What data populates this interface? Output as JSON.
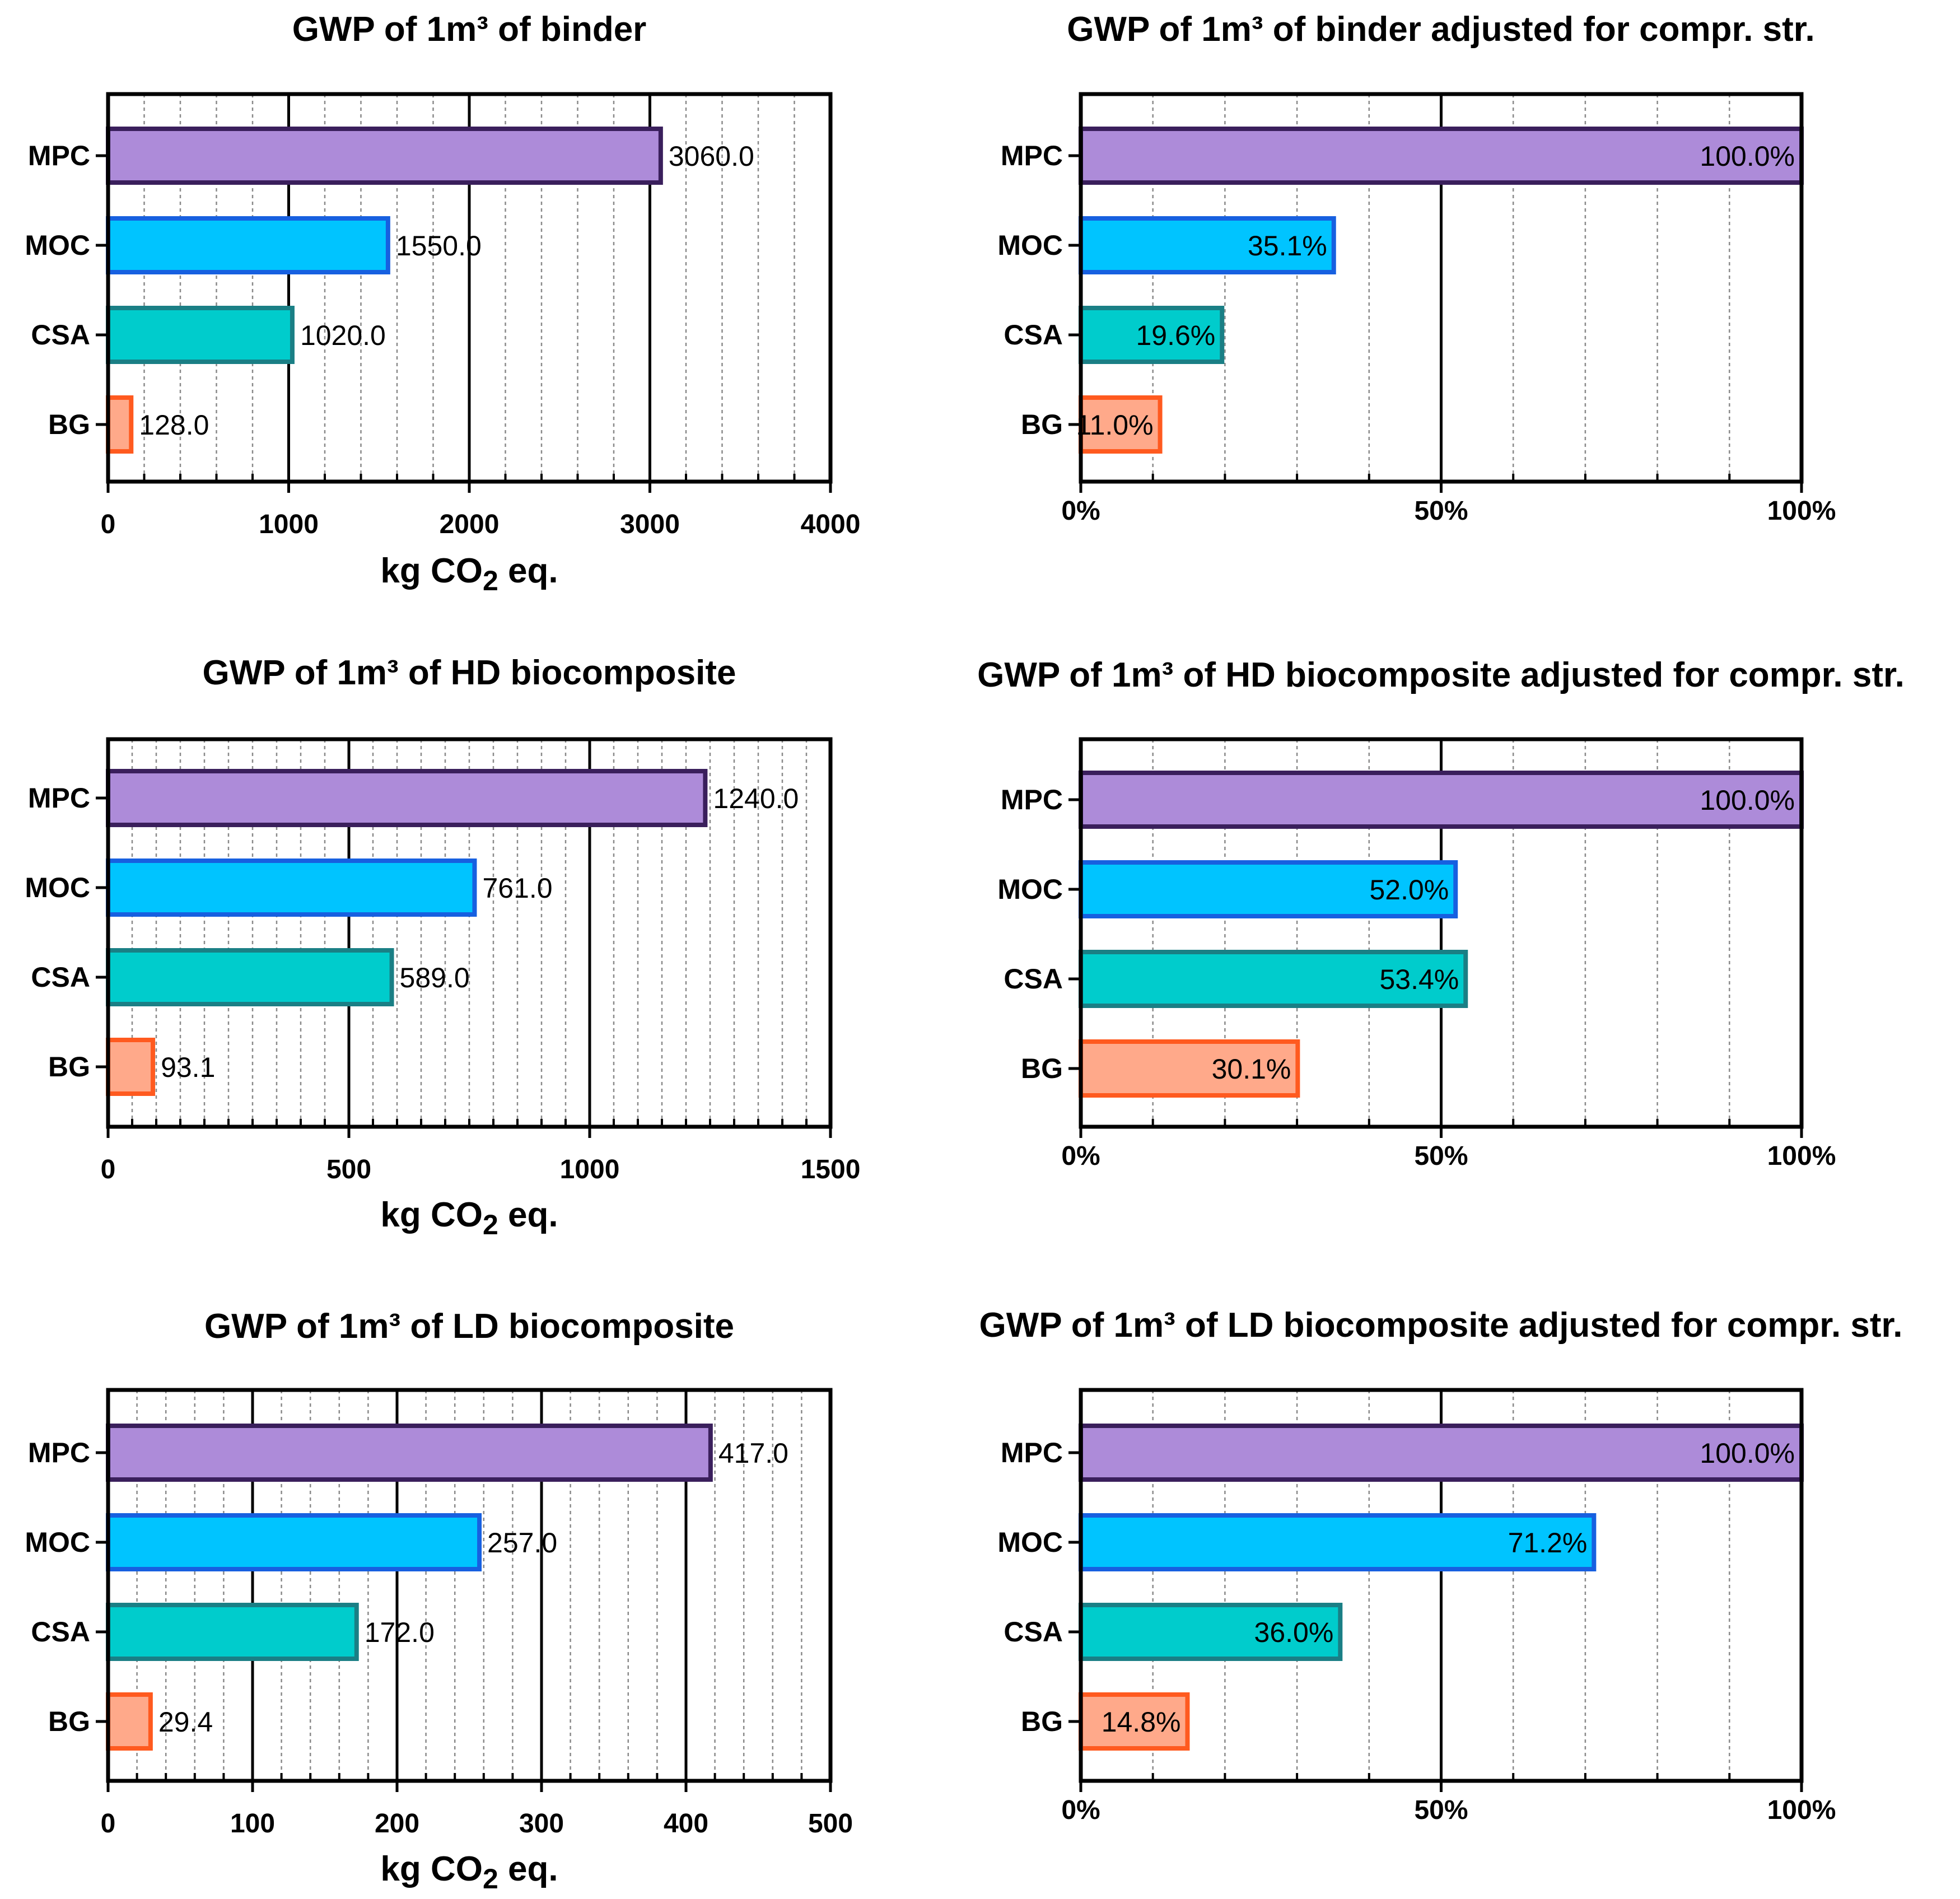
{
  "chart_data": [
    {
      "type": "bar",
      "orientation": "horizontal",
      "title": "GWP of 1m³ of binder",
      "categories": [
        "MPC",
        "MOC",
        "CSA",
        "BG"
      ],
      "values": [
        3060.0,
        1550.0,
        1020.0,
        128.0
      ],
      "value_labels": [
        "3060.0",
        "1550.0",
        "1020.0",
        "128.0"
      ],
      "xlim": [
        0,
        4000
      ],
      "xticks": [
        0,
        1000,
        2000,
        3000,
        4000
      ],
      "xtick_labels": [
        "0",
        "1000",
        "2000",
        "3000",
        "4000"
      ],
      "minor_step": 200,
      "xlabel": "kg CO2 eq.",
      "xlabel_parts": {
        "main": "kg CO",
        "sub": "2",
        "tail": " eq."
      },
      "grid": true
    },
    {
      "type": "bar",
      "orientation": "horizontal",
      "title": "GWP of 1m³ of binder adjusted for compr. str.",
      "categories": [
        "MPC",
        "MOC",
        "CSA",
        "BG"
      ],
      "values": [
        100.0,
        35.1,
        19.6,
        11.0
      ],
      "value_labels": [
        "100.0%",
        "35.1%",
        "19.6%",
        "11.0%"
      ],
      "xlim": [
        0,
        100
      ],
      "xticks": [
        0,
        50,
        100
      ],
      "xtick_labels": [
        "0%",
        "50%",
        "100%"
      ],
      "minor_step": 10,
      "xlabel": "",
      "grid": true
    },
    {
      "type": "bar",
      "orientation": "horizontal",
      "title": "GWP of 1m³ of HD biocomposite",
      "categories": [
        "MPC",
        "MOC",
        "CSA",
        "BG"
      ],
      "values": [
        1240.0,
        761.0,
        589.0,
        93.1
      ],
      "value_labels": [
        "1240.0",
        "761.0",
        "589.0",
        "93.1"
      ],
      "xlim": [
        0,
        1500
      ],
      "xticks": [
        0,
        500,
        1000,
        1500
      ],
      "xtick_labels": [
        "0",
        "500",
        "1000",
        "1500"
      ],
      "minor_step": 50,
      "xlabel": "kg CO2 eq.",
      "xlabel_parts": {
        "main": "kg CO",
        "sub": "2",
        "tail": " eq."
      },
      "grid": true
    },
    {
      "type": "bar",
      "orientation": "horizontal",
      "title": "GWP of 1m³ of HD biocomposite adjusted for compr. str.",
      "categories": [
        "MPC",
        "MOC",
        "CSA",
        "BG"
      ],
      "values": [
        100.0,
        52.0,
        53.4,
        30.1
      ],
      "value_labels": [
        "100.0%",
        "52.0%",
        "53.4%",
        "30.1%"
      ],
      "xlim": [
        0,
        100
      ],
      "xticks": [
        0,
        50,
        100
      ],
      "xtick_labels": [
        "0%",
        "50%",
        "100%"
      ],
      "minor_step": 10,
      "xlabel": "",
      "grid": true
    },
    {
      "type": "bar",
      "orientation": "horizontal",
      "title": "GWP of 1m³ of LD biocomposite",
      "categories": [
        "MPC",
        "MOC",
        "CSA",
        "BG"
      ],
      "values": [
        417.0,
        257.0,
        172.0,
        29.4
      ],
      "value_labels": [
        "417.0",
        "257.0",
        "172.0",
        "29.4"
      ],
      "xlim": [
        0,
        500
      ],
      "xticks": [
        0,
        100,
        200,
        300,
        400,
        500
      ],
      "xtick_labels": [
        "0",
        "100",
        "200",
        "300",
        "400",
        "500"
      ],
      "minor_step": 20,
      "xlabel": "kg CO2 eq.",
      "xlabel_parts": {
        "main": "kg CO",
        "sub": "2",
        "tail": " eq."
      },
      "grid": true
    },
    {
      "type": "bar",
      "orientation": "horizontal",
      "title": "GWP of 1m³ of LD biocomposite adjusted for compr. str.",
      "categories": [
        "MPC",
        "MOC",
        "CSA",
        "BG"
      ],
      "values": [
        100.0,
        71.2,
        36.0,
        14.8
      ],
      "value_labels": [
        "100.0%",
        "71.2%",
        "36.0%",
        "14.8%"
      ],
      "xlim": [
        0,
        100
      ],
      "xticks": [
        0,
        50,
        100
      ],
      "xtick_labels": [
        "0%",
        "50%",
        "100%"
      ],
      "minor_step": 10,
      "xlabel": "",
      "grid": true
    }
  ],
  "colors": {
    "MPC": {
      "fill": "#AD8BD9",
      "edge": "#3A1F5C"
    },
    "MOC": {
      "fill": "#00C4FF",
      "edge": "#1760E0"
    },
    "CSA": {
      "fill": "#00CCCC",
      "edge": "#1A7F85"
    },
    "BG": {
      "fill": "#FFA98A",
      "edge": "#FF5A1F"
    }
  }
}
